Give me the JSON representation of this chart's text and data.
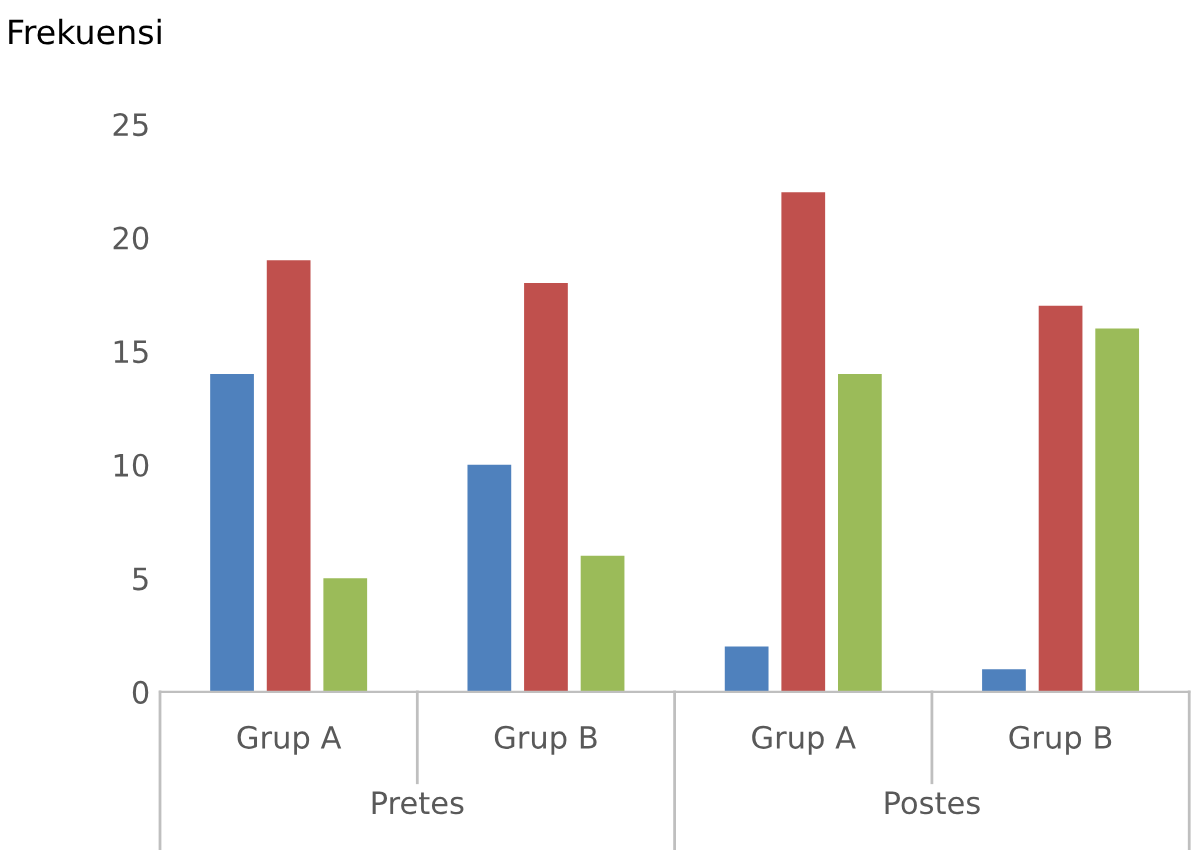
{
  "chart_data": {
    "type": "bar",
    "ylabel": "Frekuensi",
    "categories": [
      "Grup A",
      "Grup B",
      "Grup A",
      "Grup B"
    ],
    "series": [
      {
        "color": "#4f81bd",
        "values": [
          14,
          10,
          2,
          1
        ]
      },
      {
        "color": "#c0504d",
        "values": [
          19,
          18,
          22,
          17
        ]
      },
      {
        "color": "#9bbb59",
        "values": [
          5,
          6,
          14,
          16
        ]
      }
    ],
    "annotations": [
      "Pretes",
      "Postes"
    ],
    "ylim": [
      0,
      25
    ],
    "yticks": [
      0,
      5,
      10,
      15,
      20,
      25
    ],
    "grid": false,
    "legend": false
  }
}
